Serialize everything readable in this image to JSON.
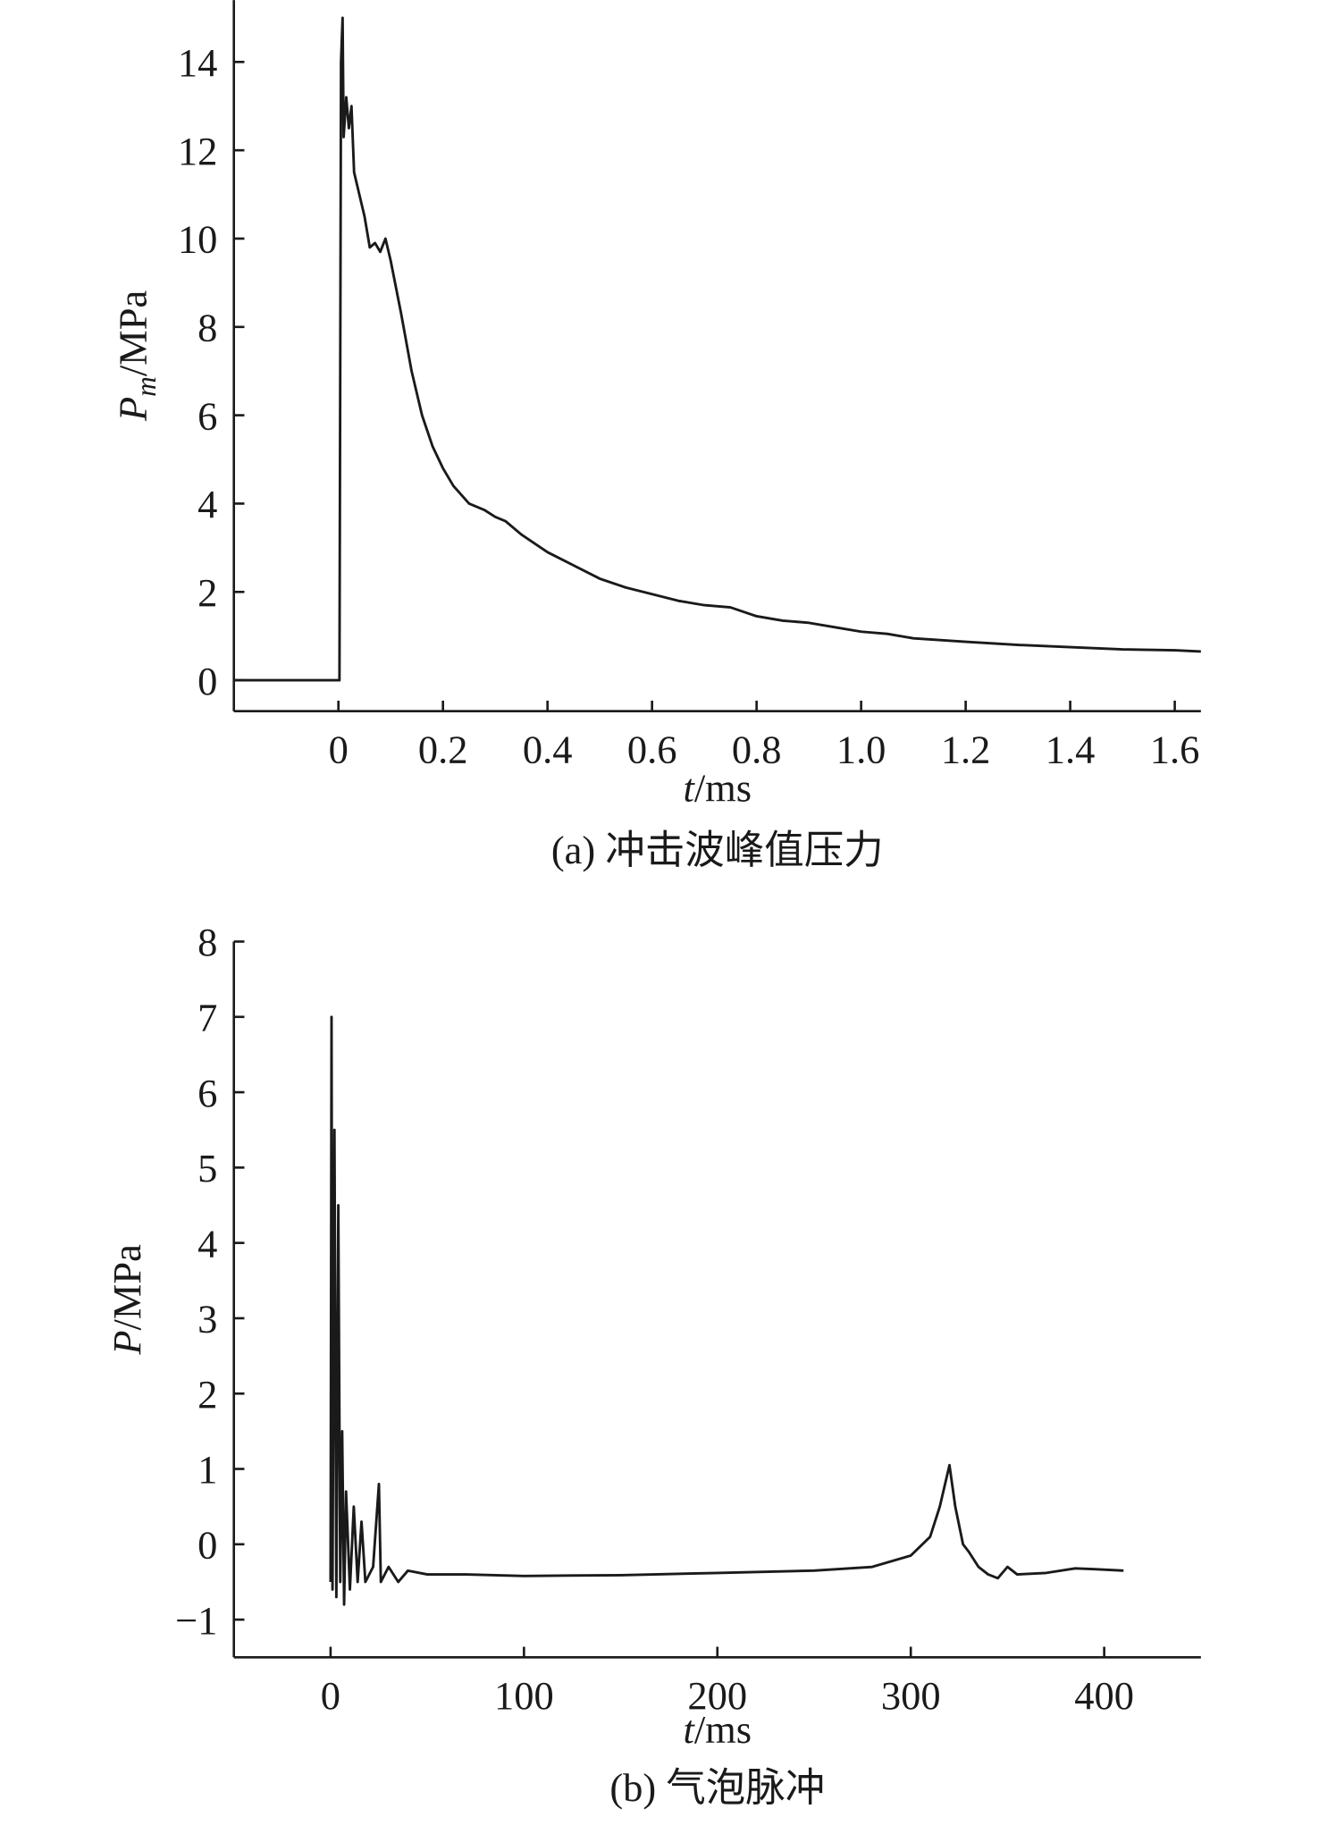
{
  "chart_data": [
    {
      "type": "line",
      "caption": "(a) 冲击波峰值压力",
      "xlabel": {
        "symbol": "t",
        "unit": "/ms"
      },
      "ylabel": {
        "symbol": "P",
        "subscript": "m",
        "unit": "/MPa"
      },
      "color": "#1a1a1a",
      "xlim": [
        -0.2,
        1.65
      ],
      "ylim": [
        -0.7,
        15.4
      ],
      "xticks": [
        0,
        0.2,
        0.4,
        0.6,
        0.8,
        {
          "value": 1,
          "label": "1.0"
        },
        1.2,
        1.4,
        1.6
      ],
      "yticks": [
        0,
        2,
        4,
        6,
        8,
        10,
        12,
        14
      ],
      "x": [
        -0.2,
        0,
        0.002,
        0.005,
        0.008,
        0.01,
        0.015,
        0.02,
        0.025,
        0.03,
        0.04,
        0.05,
        0.06,
        0.07,
        0.08,
        0.09,
        0.1,
        0.12,
        0.14,
        0.16,
        0.18,
        0.2,
        0.22,
        0.25,
        0.28,
        0.3,
        0.32,
        0.35,
        0.4,
        0.45,
        0.5,
        0.55,
        0.6,
        0.65,
        0.7,
        0.75,
        0.8,
        0.85,
        0.9,
        0.95,
        1.0,
        1.05,
        1.1,
        1.2,
        1.3,
        1.4,
        1.5,
        1.6,
        1.65
      ],
      "values": [
        0,
        0,
        0,
        14,
        15,
        12.3,
        13.2,
        12.5,
        13,
        11.5,
        11,
        10.5,
        9.8,
        9.9,
        9.7,
        10,
        9.5,
        8.3,
        7.0,
        6.0,
        5.3,
        4.8,
        4.4,
        4.0,
        3.85,
        3.7,
        3.6,
        3.3,
        2.9,
        2.6,
        2.3,
        2.1,
        1.95,
        1.8,
        1.7,
        1.65,
        1.45,
        1.35,
        1.3,
        1.2,
        1.1,
        1.05,
        0.95,
        0.87,
        0.8,
        0.75,
        0.7,
        0.68,
        0.65
      ]
    },
    {
      "type": "line",
      "caption": "(b) 气泡脉冲",
      "xlabel": {
        "symbol": "t",
        "unit": "/ms"
      },
      "ylabel": {
        "symbol": "P",
        "unit": "/MPa"
      },
      "color": "#1a1a1a",
      "xlim": [
        -50,
        450
      ],
      "ylim": [
        -1.5,
        8
      ],
      "xticks": [
        0,
        100,
        200,
        300,
        400
      ],
      "yticks": [
        {
          "value": -1,
          "label": "−1"
        },
        0,
        1,
        2,
        3,
        4,
        5,
        6,
        7,
        8
      ],
      "x": [
        0,
        0.5,
        1,
        2,
        3,
        4,
        5,
        6,
        7,
        8,
        10,
        12,
        14,
        16,
        18,
        22,
        25,
        26,
        30,
        35,
        40,
        50,
        70,
        100,
        150,
        200,
        250,
        280,
        300,
        310,
        315,
        320,
        323,
        327,
        330,
        335,
        340,
        345,
        350,
        355,
        370,
        385,
        395,
        410
      ],
      "values": [
        -0.5,
        7,
        -0.6,
        5.5,
        -0.7,
        4.5,
        -0.5,
        1.5,
        -0.8,
        0.7,
        -0.6,
        0.5,
        -0.5,
        0.3,
        -0.5,
        -0.3,
        0.8,
        -0.5,
        -0.3,
        -0.5,
        -0.35,
        -0.4,
        -0.4,
        -0.42,
        -0.41,
        -0.38,
        -0.35,
        -0.3,
        -0.15,
        0.1,
        0.5,
        1.05,
        0.5,
        0,
        -0.1,
        -0.3,
        -0.4,
        -0.45,
        -0.3,
        -0.4,
        -0.38,
        -0.32,
        -0.33,
        -0.35
      ]
    }
  ]
}
